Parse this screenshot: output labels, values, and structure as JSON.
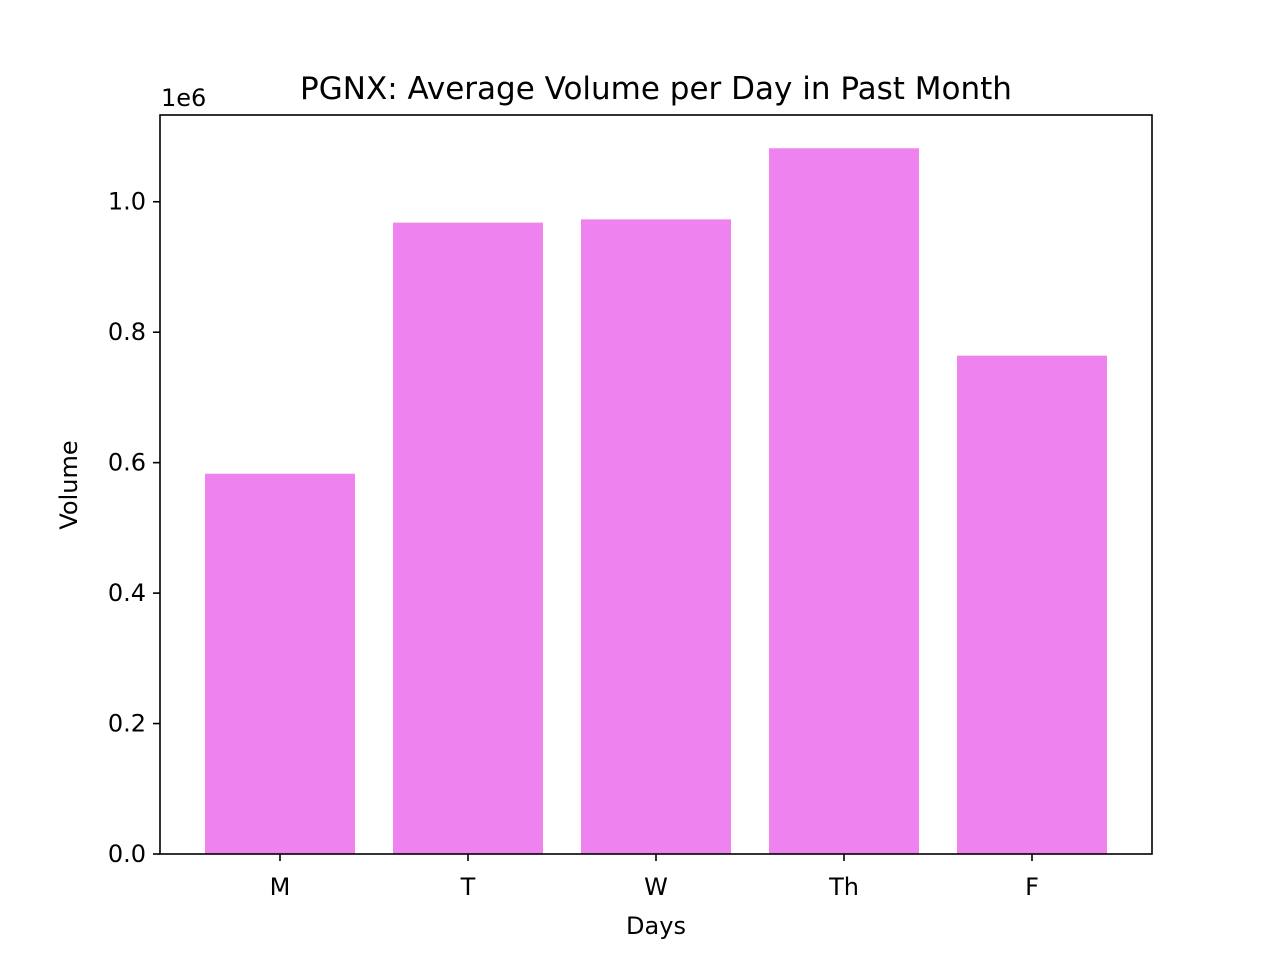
{
  "chart_data": {
    "type": "bar",
    "title": "PGNX: Average Volume per Day in Past Month",
    "xlabel": "Days",
    "ylabel": "Volume",
    "categories": [
      "M",
      "T",
      "W",
      "Th",
      "F"
    ],
    "values": [
      583000,
      968000,
      973000,
      1082000,
      764000
    ],
    "ylim": [
      0,
      1133000
    ],
    "yticks": [
      0,
      200000,
      400000,
      600000,
      800000,
      1000000
    ],
    "ytick_labels": [
      "0.0",
      "0.2",
      "0.4",
      "0.6",
      "0.8",
      "1.0"
    ],
    "y_offset_label": "1e6",
    "bar_color": "#ee82ee",
    "grid": false,
    "legend": "none"
  }
}
